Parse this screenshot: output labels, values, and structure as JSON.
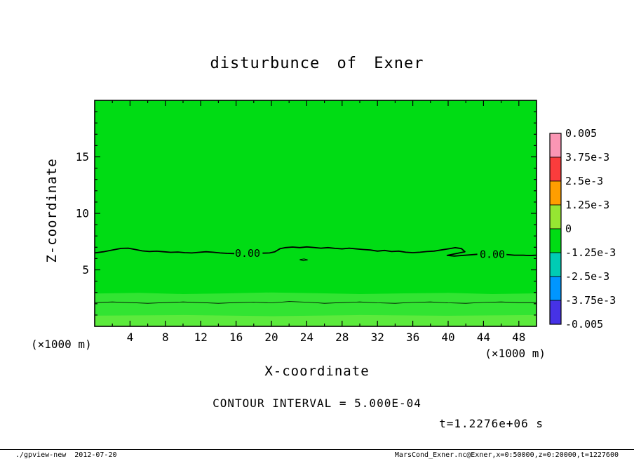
{
  "title": "disturbunce of Exner",
  "axis": {
    "xlabel": "X-coordinate",
    "ylabel": "Z-coordinate",
    "x_unit": "(×1000 m)",
    "y_unit": "(×1000 m)"
  },
  "annotations": {
    "contour_note": "CONTOUR INTERVAL = 5.000E-04",
    "time_label": "t=1.2276e+06 s"
  },
  "footer": {
    "left": "./gpview-new  2012-07-20",
    "right": "MarsCond_Exner.nc@Exner,x=0:50000,z=0:20000,t=1227600"
  },
  "chart_data": {
    "type": "heatmap",
    "title": "disturbunce of Exner",
    "xlabel": "X-coordinate (×1000 m)",
    "ylabel": "Z-coordinate (×1000 m)",
    "xlim": [
      0,
      50
    ],
    "ylim": [
      0,
      20
    ],
    "x_ticks_labeled": [
      4,
      8,
      12,
      16,
      20,
      24,
      28,
      32,
      36,
      40,
      44,
      48
    ],
    "x_tick_minor_step": 2,
    "y_ticks_labeled": [
      5,
      10,
      15
    ],
    "y_tick_minor_step": 1,
    "contour_interval": "5.000E-04",
    "time": "t=1.2276e+06 s",
    "field": {
      "description": "Nearly uniform green field (values near 0) with a slightly lighter shallow layer below z≈3 (×1000 m) and a zero contour near z≈6.5 (×1000 m)",
      "background_color": "#00dc14",
      "bands": [
        {
          "color": "#32e432",
          "top_edge": [
            [
              0,
              2.9
            ],
            [
              5,
              2.96
            ],
            [
              10,
              2.86
            ],
            [
              15,
              2.92
            ],
            [
              20,
              3.0
            ],
            [
              25,
              2.94
            ],
            [
              30,
              2.86
            ],
            [
              35,
              2.92
            ],
            [
              40,
              2.96
            ],
            [
              45,
              2.86
            ],
            [
              50,
              2.92
            ]
          ]
        },
        {
          "color": "#5cea3c",
          "top_edge": [
            [
              0,
              0.95
            ],
            [
              10,
              1.0
            ],
            [
              20,
              0.9
            ],
            [
              30,
              1.0
            ],
            [
              40,
              0.94
            ],
            [
              50,
              1.0
            ]
          ]
        }
      ]
    },
    "contours": {
      "zero_line": {
        "value": 0,
        "label": "0.00",
        "label_positions": [
          [
            17.3,
            6.45
          ],
          [
            45.0,
            6.38
          ]
        ],
        "segments": [
          [
            [
              0,
              6.5
            ],
            [
              1,
              6.6
            ],
            [
              2,
              6.75
            ],
            [
              3,
              6.9
            ],
            [
              3.8,
              6.92
            ],
            [
              4.6,
              6.8
            ],
            [
              5.4,
              6.68
            ],
            [
              6.2,
              6.62
            ],
            [
              7,
              6.65
            ],
            [
              7.8,
              6.6
            ],
            [
              8.6,
              6.55
            ],
            [
              9.4,
              6.58
            ],
            [
              10.2,
              6.52
            ],
            [
              11,
              6.5
            ],
            [
              11.8,
              6.55
            ],
            [
              12.6,
              6.6
            ],
            [
              13.4,
              6.56
            ],
            [
              14.2,
              6.5
            ],
            [
              15,
              6.46
            ],
            [
              15.8,
              6.44
            ]
          ],
          [
            [
              19,
              6.48
            ],
            [
              19.8,
              6.5
            ],
            [
              20.4,
              6.6
            ],
            [
              21,
              6.88
            ],
            [
              21.6,
              6.97
            ],
            [
              22.4,
              7.02
            ],
            [
              23.2,
              6.97
            ],
            [
              24,
              7.03
            ],
            [
              24.8,
              6.98
            ],
            [
              25.6,
              6.92
            ],
            [
              26.4,
              6.97
            ],
            [
              27.2,
              6.9
            ],
            [
              28,
              6.86
            ],
            [
              28.8,
              6.92
            ],
            [
              29.6,
              6.86
            ],
            [
              30.4,
              6.8
            ],
            [
              31.2,
              6.76
            ],
            [
              32,
              6.66
            ],
            [
              32.8,
              6.72
            ],
            [
              33.6,
              6.62
            ],
            [
              34.4,
              6.66
            ],
            [
              35.2,
              6.56
            ],
            [
              36,
              6.52
            ],
            [
              36.8,
              6.56
            ],
            [
              37.6,
              6.62
            ],
            [
              38.4,
              6.66
            ],
            [
              39.2,
              6.76
            ],
            [
              40,
              6.86
            ],
            [
              40.8,
              6.96
            ],
            [
              41.5,
              6.88
            ],
            [
              41.9,
              6.6
            ],
            [
              39.9,
              6.28
            ],
            [
              40.7,
              6.22
            ],
            [
              43.3,
              6.38
            ]
          ],
          [
            [
              46.6,
              6.36
            ],
            [
              47.5,
              6.3
            ],
            [
              48.5,
              6.3
            ],
            [
              49.2,
              6.27
            ],
            [
              50,
              6.3
            ]
          ]
        ]
      },
      "lower_line": {
        "value": 0.0005,
        "points": [
          [
            0,
            2.1
          ],
          [
            2,
            2.16
          ],
          [
            4,
            2.1
          ],
          [
            6,
            2.04
          ],
          [
            8,
            2.1
          ],
          [
            10,
            2.16
          ],
          [
            12,
            2.1
          ],
          [
            14,
            2.04
          ],
          [
            16,
            2.1
          ],
          [
            18,
            2.14
          ],
          [
            20,
            2.08
          ],
          [
            22,
            2.2
          ],
          [
            24,
            2.14
          ],
          [
            26,
            2.04
          ],
          [
            28,
            2.1
          ],
          [
            30,
            2.16
          ],
          [
            32,
            2.08
          ],
          [
            34,
            2.04
          ],
          [
            36,
            2.12
          ],
          [
            38,
            2.16
          ],
          [
            40,
            2.08
          ],
          [
            42,
            2.04
          ],
          [
            44,
            2.12
          ],
          [
            46,
            2.16
          ],
          [
            48,
            2.1
          ],
          [
            50,
            2.1
          ]
        ]
      },
      "small_closed_contour": {
        "points": [
          [
            23.2,
            5.9
          ],
          [
            23.6,
            5.8
          ],
          [
            24.1,
            5.88
          ],
          [
            23.7,
            5.97
          ],
          [
            23.2,
            5.9
          ]
        ]
      }
    },
    "colorbar": {
      "labels": [
        "0.005",
        "3.75e-3",
        "2.5e-3",
        "1.25e-3",
        "0",
        "-1.25e-3",
        "-2.5e-3",
        "-3.75e-3",
        "-0.005"
      ],
      "segment_colors_top_to_bottom": [
        "#fa96b4",
        "#fa3c3c",
        "#ff9e00",
        "#96e632",
        "#00dc14",
        "#00ccb4",
        "#0096ff",
        "#4632e6"
      ]
    }
  }
}
